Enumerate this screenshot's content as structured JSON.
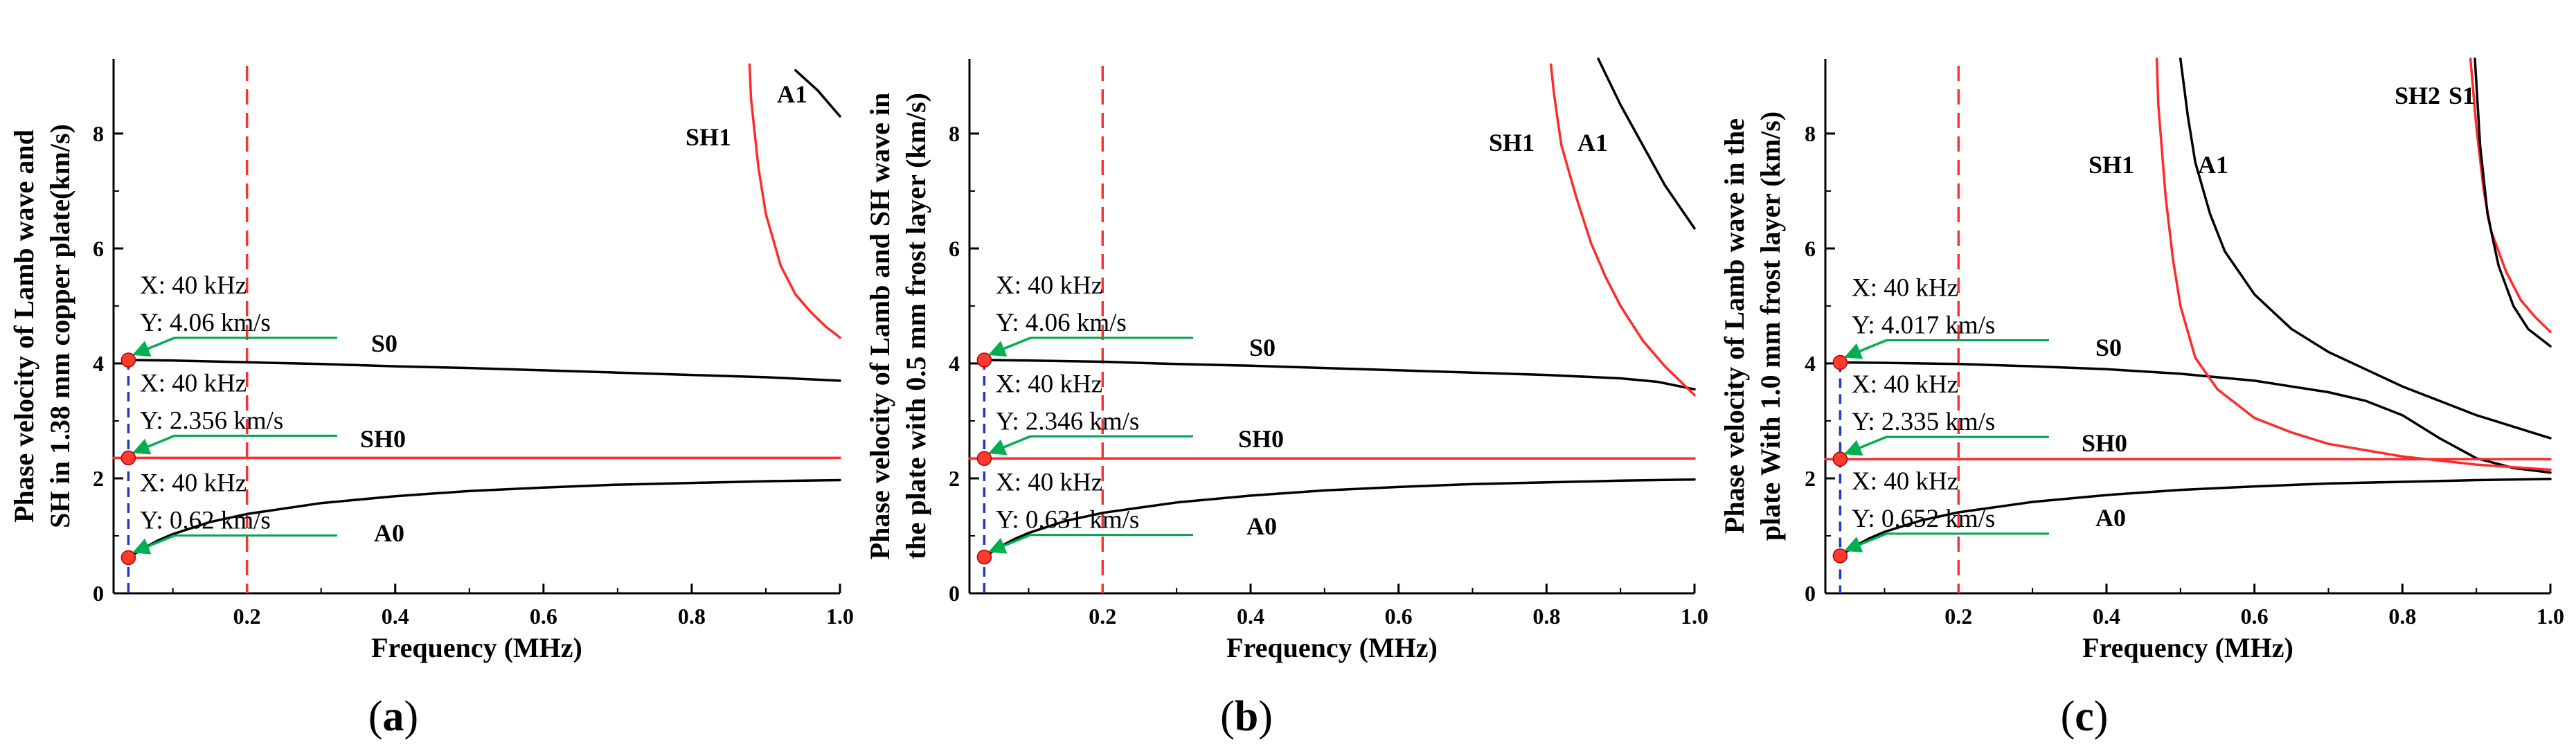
{
  "colors": {
    "black_curve": "#000000",
    "red_curve": "#ff2a2a",
    "dashed_red": "#ff3030",
    "dashed_blue": "#2236cc",
    "marker": "#ff3b2e",
    "arrow_green": "#00b050",
    "annotation_line": "#00a651"
  },
  "chart_data": [
    {
      "type": "line",
      "panel_label": "a",
      "xlabel": "Frequency (MHz)",
      "ylabel_lines": [
        "Phase velocity of Lamb wave and",
        "SH in 1.38 mm copper plate(km/s)"
      ],
      "xlim": [
        0.02,
        1.0
      ],
      "ylim": [
        0,
        9.3
      ],
      "xticks": [
        0.2,
        0.4,
        0.6,
        0.8,
        1.0
      ],
      "xtick_labels": [
        "0.2",
        "0.4",
        "0.6",
        "0.8",
        "1.0"
      ],
      "yticks": [
        0,
        2,
        4,
        6,
        8
      ],
      "ytick_labels": [
        "0",
        "2",
        "4",
        "6",
        "8"
      ],
      "vline_red_x": 0.2,
      "vline_blue_x": 0.04,
      "series": [
        {
          "name": "S0",
          "color": "black",
          "x": [
            0.04,
            0.1,
            0.2,
            0.3,
            0.4,
            0.5,
            0.6,
            0.7,
            0.8,
            0.9,
            1.0
          ],
          "y": [
            4.06,
            4.05,
            4.02,
            3.99,
            3.95,
            3.92,
            3.88,
            3.84,
            3.8,
            3.76,
            3.7
          ]
        },
        {
          "name": "SH0",
          "color": "red",
          "x": [
            0.02,
            1.0
          ],
          "y": [
            2.356,
            2.356
          ]
        },
        {
          "name": "A0",
          "color": "black",
          "x": [
            0.04,
            0.06,
            0.08,
            0.1,
            0.15,
            0.2,
            0.3,
            0.4,
            0.5,
            0.6,
            0.7,
            0.8,
            0.9,
            1.0
          ],
          "y": [
            0.62,
            0.78,
            0.92,
            1.03,
            1.24,
            1.38,
            1.57,
            1.69,
            1.78,
            1.84,
            1.89,
            1.92,
            1.95,
            1.97
          ]
        },
        {
          "name": "SH1",
          "color": "red",
          "x": [
            0.878,
            0.88,
            0.89,
            0.9,
            0.92,
            0.94,
            0.96,
            0.98,
            1.0
          ],
          "y": [
            9.2,
            8.6,
            7.4,
            6.6,
            5.7,
            5.2,
            4.9,
            4.65,
            4.45
          ]
        },
        {
          "name": "A1",
          "color": "black",
          "x": [
            0.94,
            0.97,
            1.0
          ],
          "y": [
            9.1,
            8.75,
            8.3
          ]
        }
      ],
      "mode_labels": [
        "SH1",
        "A1",
        "S0",
        "SH0",
        "A0"
      ],
      "points": [
        {
          "x": 0.04,
          "y": 4.06,
          "label_x": "X: 40 kHz",
          "label_y": "Y: 4.06 km/s"
        },
        {
          "x": 0.04,
          "y": 2.356,
          "label_x": "X: 40 kHz",
          "label_y": "Y: 2.356 km/s"
        },
        {
          "x": 0.04,
          "y": 0.62,
          "label_x": "X: 40 kHz",
          "label_y": "Y: 0.62 km/s"
        }
      ]
    },
    {
      "type": "line",
      "panel_label": "b",
      "xlabel": "Frequency (MHz)",
      "ylabel_lines": [
        "Phase velocity of Lamb and SH wave in",
        "the plate with 0.5 mm frost layer (km/s)"
      ],
      "xlim": [
        0.02,
        1.0
      ],
      "ylim": [
        0,
        9.3
      ],
      "xticks": [
        0.2,
        0.4,
        0.6,
        0.8,
        1.0
      ],
      "xtick_labels": [
        "0.2",
        "0.4",
        "0.6",
        "0.8",
        "1.0"
      ],
      "yticks": [
        0,
        2,
        4,
        6,
        8
      ],
      "ytick_labels": [
        "0",
        "2",
        "4",
        "6",
        "8"
      ],
      "vline_red_x": 0.2,
      "vline_blue_x": 0.04,
      "series": [
        {
          "name": "S0",
          "color": "black",
          "x": [
            0.04,
            0.1,
            0.2,
            0.3,
            0.4,
            0.5,
            0.6,
            0.7,
            0.8,
            0.9,
            0.95,
            1.0
          ],
          "y": [
            4.06,
            4.05,
            4.03,
            3.99,
            3.96,
            3.92,
            3.88,
            3.84,
            3.8,
            3.74,
            3.68,
            3.55
          ]
        },
        {
          "name": "SH0",
          "color": "red",
          "x": [
            0.02,
            1.0
          ],
          "y": [
            2.346,
            2.346
          ]
        },
        {
          "name": "A0",
          "color": "black",
          "x": [
            0.04,
            0.06,
            0.08,
            0.1,
            0.15,
            0.2,
            0.3,
            0.4,
            0.5,
            0.6,
            0.7,
            0.8,
            0.9,
            1.0
          ],
          "y": [
            0.631,
            0.8,
            0.94,
            1.05,
            1.26,
            1.4,
            1.58,
            1.7,
            1.79,
            1.85,
            1.9,
            1.93,
            1.96,
            1.98
          ]
        },
        {
          "name": "SH1",
          "color": "red",
          "x": [
            0.806,
            0.81,
            0.82,
            0.84,
            0.86,
            0.88,
            0.9,
            0.93,
            0.96,
            1.0
          ],
          "y": [
            9.2,
            8.7,
            7.8,
            6.9,
            6.1,
            5.5,
            5.0,
            4.4,
            3.95,
            3.45
          ]
        },
        {
          "name": "A1",
          "color": "black",
          "x": [
            0.87,
            0.9,
            0.93,
            0.96,
            1.0
          ],
          "y": [
            9.3,
            8.5,
            7.8,
            7.1,
            6.35
          ]
        }
      ],
      "mode_labels": [
        "SH1",
        "A1",
        "S0",
        "SH0",
        "A0"
      ],
      "points": [
        {
          "x": 0.04,
          "y": 4.06,
          "label_x": "X: 40 kHz",
          "label_y": "Y: 4.06 km/s"
        },
        {
          "x": 0.04,
          "y": 2.346,
          "label_x": "X: 40 kHz",
          "label_y": "Y: 2.346 km/s"
        },
        {
          "x": 0.04,
          "y": 0.631,
          "label_x": "X: 40 kHz",
          "label_y": "Y: 0.631 km/s"
        }
      ]
    },
    {
      "type": "line",
      "panel_label": "c",
      "xlabel": "Frequency (MHz)",
      "ylabel_lines": [
        "Phase velocity of Lamb wave in the",
        "plate With 1.0 mm frost layer (km/s)"
      ],
      "xlim": [
        0.02,
        1.0
      ],
      "ylim": [
        0,
        9.3
      ],
      "xticks": [
        0.2,
        0.4,
        0.6,
        0.8,
        1.0
      ],
      "xtick_labels": [
        "0.2",
        "0.4",
        "0.6",
        "0.8",
        "1.0"
      ],
      "yticks": [
        0,
        2,
        4,
        6,
        8
      ],
      "ytick_labels": [
        "0",
        "2",
        "4",
        "6",
        "8"
      ],
      "vline_red_x": 0.2,
      "vline_blue_x": 0.04,
      "series": [
        {
          "name": "S0",
          "color": "black",
          "x": [
            0.04,
            0.1,
            0.2,
            0.3,
            0.4,
            0.5,
            0.6,
            0.7,
            0.75,
            0.8,
            0.85,
            0.9,
            0.95,
            1.0
          ],
          "y": [
            4.017,
            4.01,
            3.99,
            3.95,
            3.9,
            3.82,
            3.7,
            3.5,
            3.35,
            3.1,
            2.7,
            2.35,
            2.18,
            2.1
          ]
        },
        {
          "name": "SH0",
          "color": "red",
          "x": [
            0.02,
            1.0
          ],
          "y": [
            2.335,
            2.335
          ]
        },
        {
          "name": "A0",
          "color": "black",
          "x": [
            0.04,
            0.06,
            0.08,
            0.1,
            0.15,
            0.2,
            0.3,
            0.4,
            0.5,
            0.6,
            0.7,
            0.8,
            0.9,
            1.0
          ],
          "y": [
            0.652,
            0.82,
            0.96,
            1.07,
            1.27,
            1.41,
            1.59,
            1.71,
            1.8,
            1.86,
            1.91,
            1.94,
            1.97,
            1.99
          ]
        },
        {
          "name": "SH1",
          "color": "red",
          "x": [
            0.468,
            0.47,
            0.48,
            0.49,
            0.5,
            0.52,
            0.55,
            0.6,
            0.65,
            0.7,
            0.8,
            0.9,
            1.0
          ],
          "y": [
            9.3,
            8.5,
            6.9,
            5.8,
            5.0,
            4.1,
            3.55,
            3.05,
            2.8,
            2.6,
            2.38,
            2.24,
            2.15
          ]
        },
        {
          "name": "A1",
          "color": "black",
          "x": [
            0.5,
            0.51,
            0.52,
            0.54,
            0.56,
            0.6,
            0.65,
            0.7,
            0.8,
            0.9,
            1.0
          ],
          "y": [
            9.3,
            8.3,
            7.5,
            6.6,
            5.95,
            5.2,
            4.6,
            4.2,
            3.6,
            3.1,
            2.7
          ]
        },
        {
          "name": "SH2",
          "color": "red",
          "x": [
            0.892,
            0.9,
            0.91,
            0.92,
            0.94,
            0.96,
            0.98,
            1.0
          ],
          "y": [
            9.3,
            8.1,
            7.0,
            6.3,
            5.6,
            5.1,
            4.8,
            4.55
          ]
        },
        {
          "name": "S1",
          "color": "black",
          "x": [
            0.898,
            0.905,
            0.915,
            0.93,
            0.95,
            0.97,
            1.0
          ],
          "y": [
            9.3,
            7.8,
            6.6,
            5.7,
            5.0,
            4.6,
            4.3
          ]
        }
      ],
      "mode_labels": [
        "SH1",
        "A1",
        "SH2",
        "S1",
        "S0",
        "SH0",
        "A0"
      ],
      "points": [
        {
          "x": 0.04,
          "y": 4.017,
          "label_x": "X: 40 kHz",
          "label_y": "Y: 4.017 km/s"
        },
        {
          "x": 0.04,
          "y": 2.335,
          "label_x": "X: 40 kHz",
          "label_y": "Y: 2.335 km/s"
        },
        {
          "x": 0.04,
          "y": 0.652,
          "label_x": "X: 40 kHz",
          "label_y": "Y: 0.652 km/s"
        }
      ]
    }
  ]
}
